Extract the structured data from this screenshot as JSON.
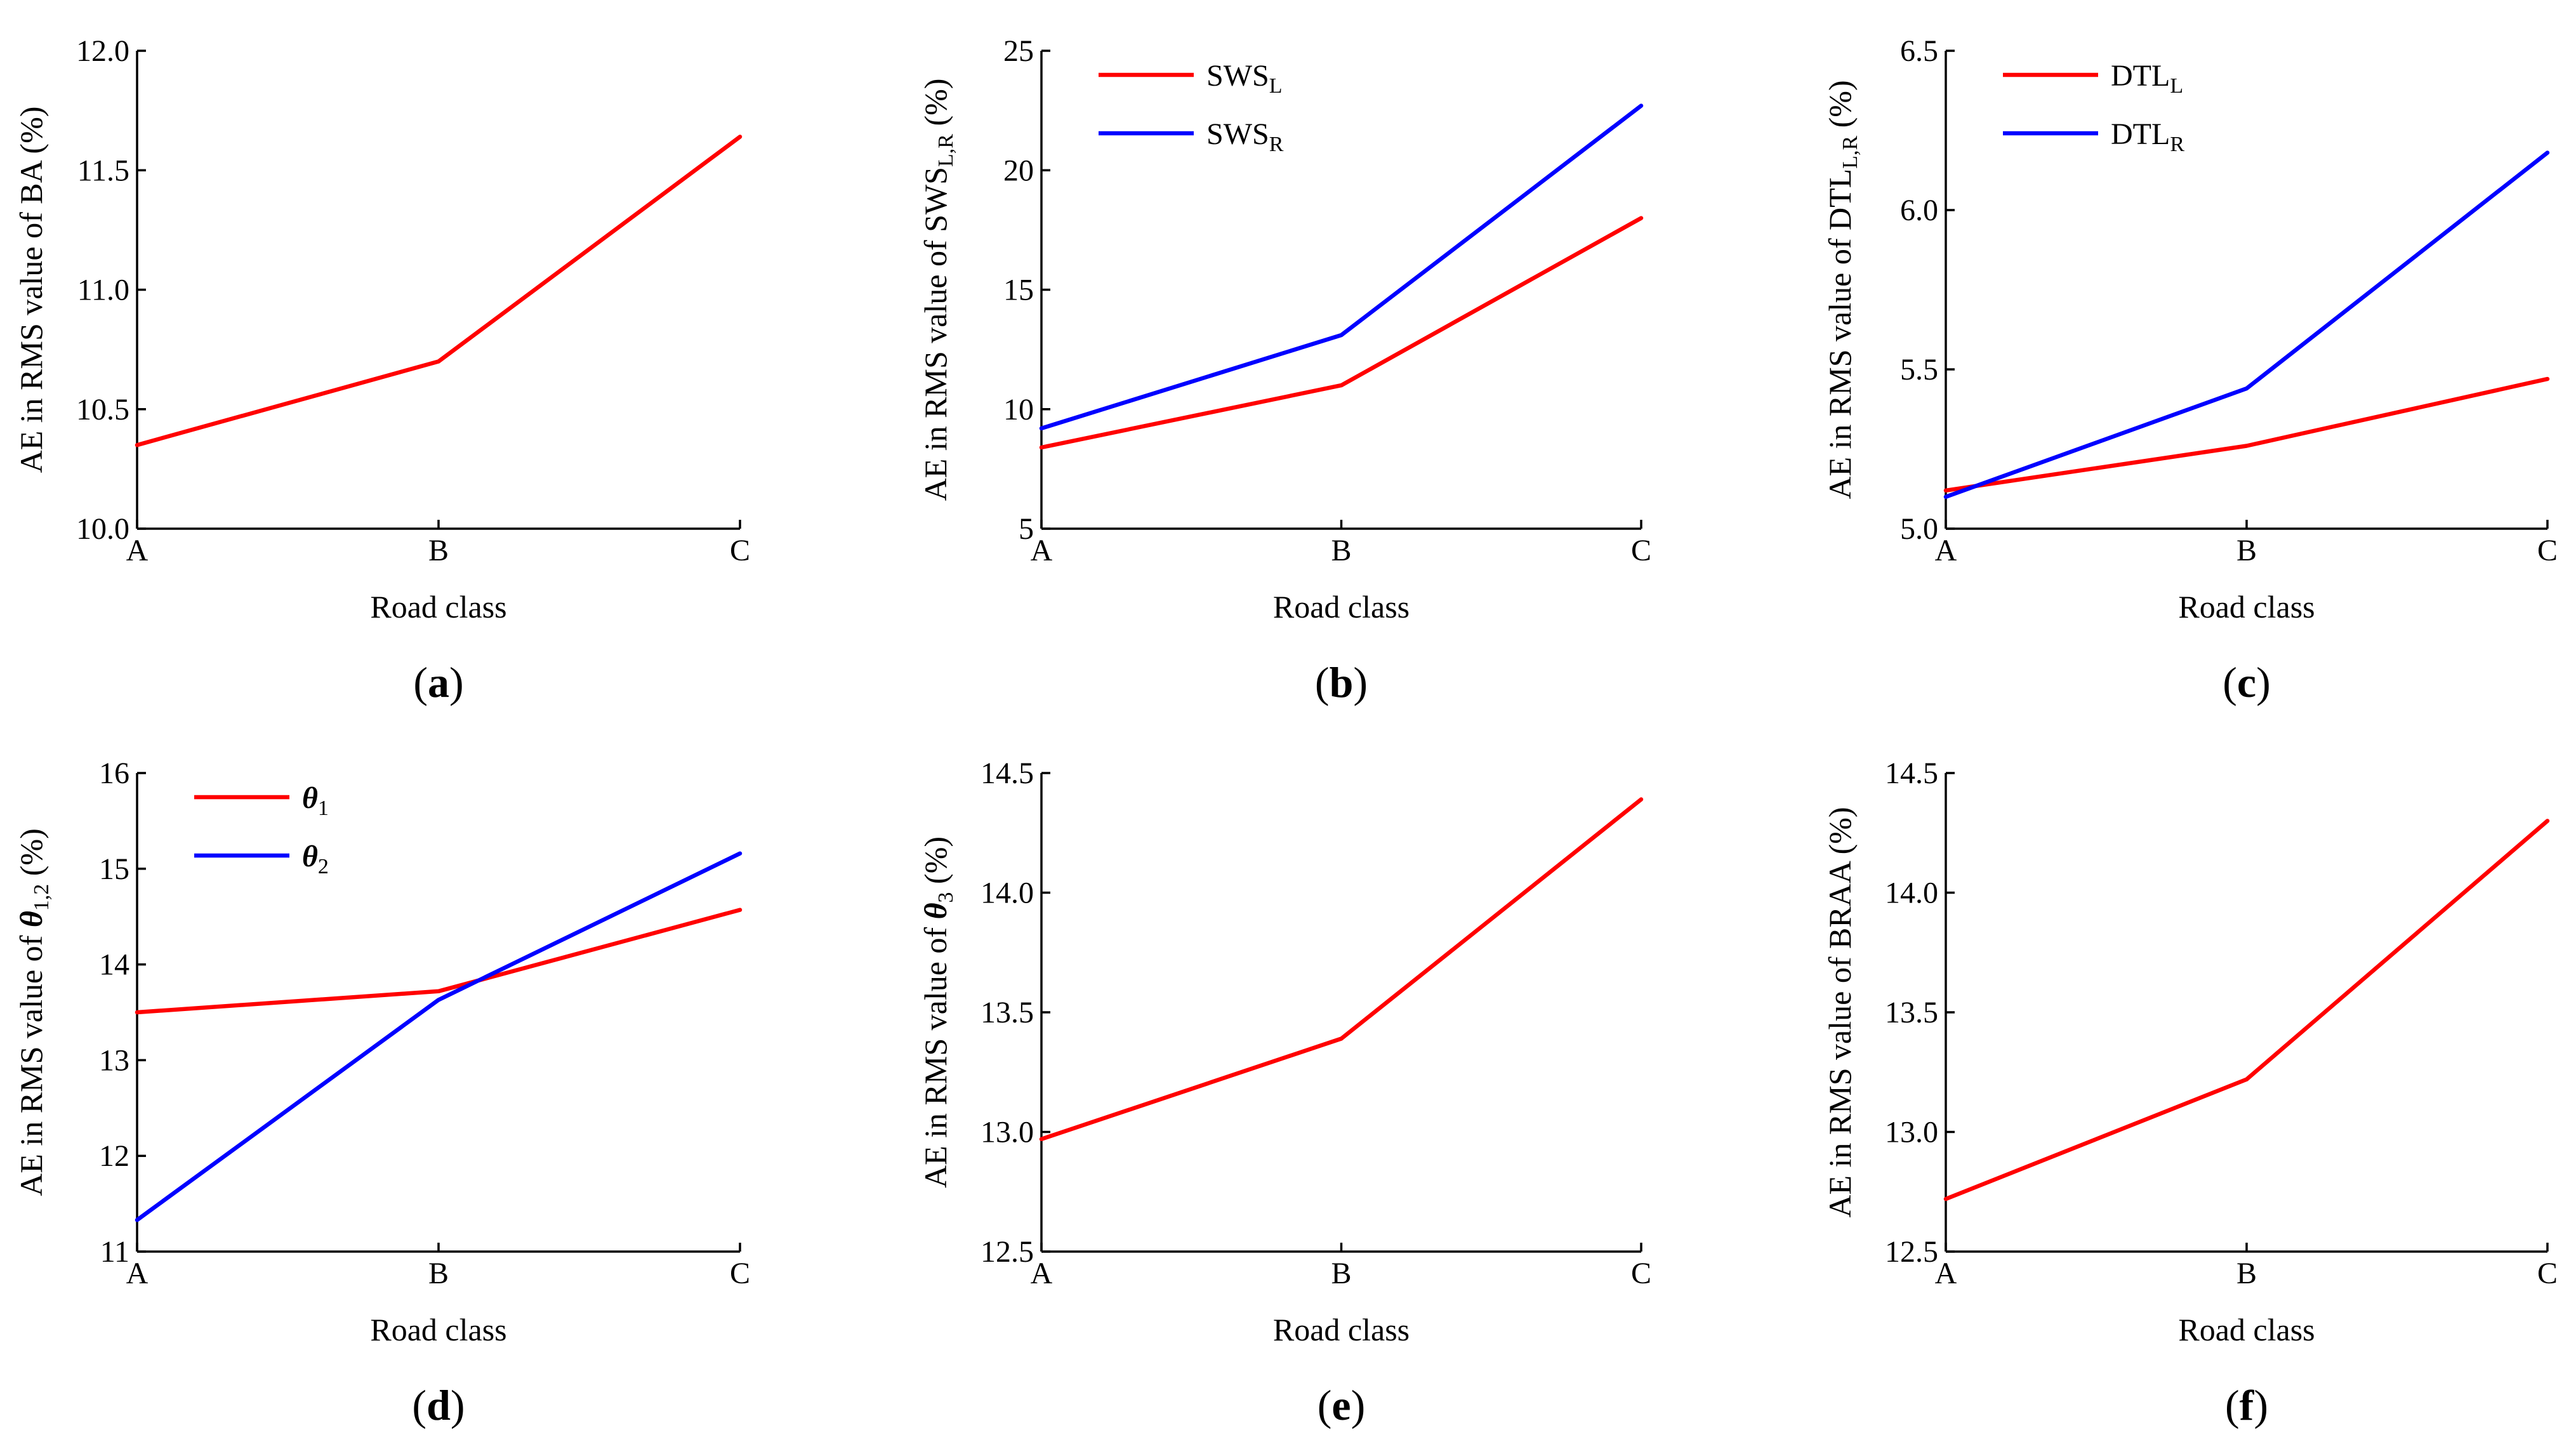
{
  "colors": {
    "red": "#ff0000",
    "blue": "#0000ff",
    "axis": "#000000"
  },
  "chart_data": [
    {
      "id": "a",
      "type": "line",
      "label": "a",
      "categories": [
        "A",
        "B",
        "C"
      ],
      "xlabel": "Road class",
      "ylabel": {
        "pre": "AE in RMS value of BA (%)",
        "mid": "",
        "sub": "",
        "post": "",
        "italic": false
      },
      "ylim": [
        10.0,
        12.0
      ],
      "yticks": [
        "10.0",
        "10.5",
        "11.0",
        "11.5",
        "12.0"
      ],
      "series": [
        {
          "name": "BA",
          "color": "#ff0000",
          "values": [
            10.35,
            10.7,
            11.64
          ]
        }
      ],
      "legend": []
    },
    {
      "id": "b",
      "type": "line",
      "label": "b",
      "categories": [
        "A",
        "B",
        "C"
      ],
      "xlabel": "Road class",
      "ylabel": {
        "pre": "AE in RMS value of ",
        "mid": "SWS",
        "sub": "L,R",
        "post": " (%)",
        "italic": false
      },
      "ylim": [
        5,
        25
      ],
      "yticks": [
        "5",
        "10",
        "15",
        "20",
        "25"
      ],
      "series": [
        {
          "name": "SWS_L",
          "color": "#ff0000",
          "values": [
            8.4,
            11.0,
            18.0
          ]
        },
        {
          "name": "SWS_R",
          "color": "#0000ff",
          "values": [
            9.2,
            13.1,
            22.7
          ]
        }
      ],
      "legend": [
        {
          "main": "SWS",
          "sub": "L",
          "color": "#ff0000",
          "italic": false
        },
        {
          "main": "SWS",
          "sub": "R",
          "color": "#0000ff",
          "italic": false
        }
      ]
    },
    {
      "id": "c",
      "type": "line",
      "label": "c",
      "categories": [
        "A",
        "B",
        "C"
      ],
      "xlabel": "Road class",
      "ylabel": {
        "pre": "AE in RMS value of ",
        "mid": "DTL",
        "sub": "L,R",
        "post": " (%)",
        "italic": false
      },
      "ylim": [
        5.0,
        6.5
      ],
      "yticks": [
        "5.0",
        "5.5",
        "6.0",
        "6.5"
      ],
      "series": [
        {
          "name": "DTL_L",
          "color": "#ff0000",
          "values": [
            5.12,
            5.26,
            5.47
          ]
        },
        {
          "name": "DTL_R",
          "color": "#0000ff",
          "values": [
            5.1,
            5.44,
            6.18
          ]
        }
      ],
      "legend": [
        {
          "main": "DTL",
          "sub": "L",
          "color": "#ff0000",
          "italic": false
        },
        {
          "main": "DTL",
          "sub": "R",
          "color": "#0000ff",
          "italic": false
        }
      ]
    },
    {
      "id": "d",
      "type": "line",
      "label": "d",
      "categories": [
        "A",
        "B",
        "C"
      ],
      "xlabel": "Road class",
      "ylabel": {
        "pre": "AE in RMS value of ",
        "mid": "θ",
        "sub": "1,2",
        "post": " (%)",
        "italic": true
      },
      "ylim": [
        11,
        16
      ],
      "yticks": [
        "11",
        "12",
        "13",
        "14",
        "15",
        "16"
      ],
      "series": [
        {
          "name": "θ1",
          "color": "#ff0000",
          "values": [
            13.5,
            13.72,
            14.57
          ]
        },
        {
          "name": "θ2",
          "color": "#0000ff",
          "values": [
            11.33,
            13.63,
            15.16
          ]
        }
      ],
      "legend": [
        {
          "main": "θ",
          "sub": "1",
          "color": "#ff0000",
          "italic": true
        },
        {
          "main": "θ",
          "sub": "2",
          "color": "#0000ff",
          "italic": true
        }
      ]
    },
    {
      "id": "e",
      "type": "line",
      "label": "e",
      "categories": [
        "A",
        "B",
        "C"
      ],
      "xlabel": "Road class",
      "ylabel": {
        "pre": "AE in RMS value of ",
        "mid": "θ",
        "sub": "3",
        "post": " (%)",
        "italic": true
      },
      "ylim": [
        12.5,
        14.5
      ],
      "yticks": [
        "12.5",
        "13.0",
        "13.5",
        "14.0",
        "14.5"
      ],
      "series": [
        {
          "name": "θ3",
          "color": "#ff0000",
          "values": [
            12.97,
            13.39,
            14.39
          ]
        }
      ],
      "legend": []
    },
    {
      "id": "f",
      "type": "line",
      "label": "f",
      "categories": [
        "A",
        "B",
        "C"
      ],
      "xlabel": "Road class",
      "ylabel": {
        "pre": "AE in RMS value of BRAA (%)",
        "mid": "",
        "sub": "",
        "post": "",
        "italic": false
      },
      "ylim": [
        12.5,
        14.5
      ],
      "yticks": [
        "12.5",
        "13.0",
        "13.5",
        "14.0",
        "14.5"
      ],
      "series": [
        {
          "name": "BRAA",
          "color": "#ff0000",
          "values": [
            12.72,
            13.22,
            14.3
          ]
        }
      ],
      "legend": []
    }
  ]
}
